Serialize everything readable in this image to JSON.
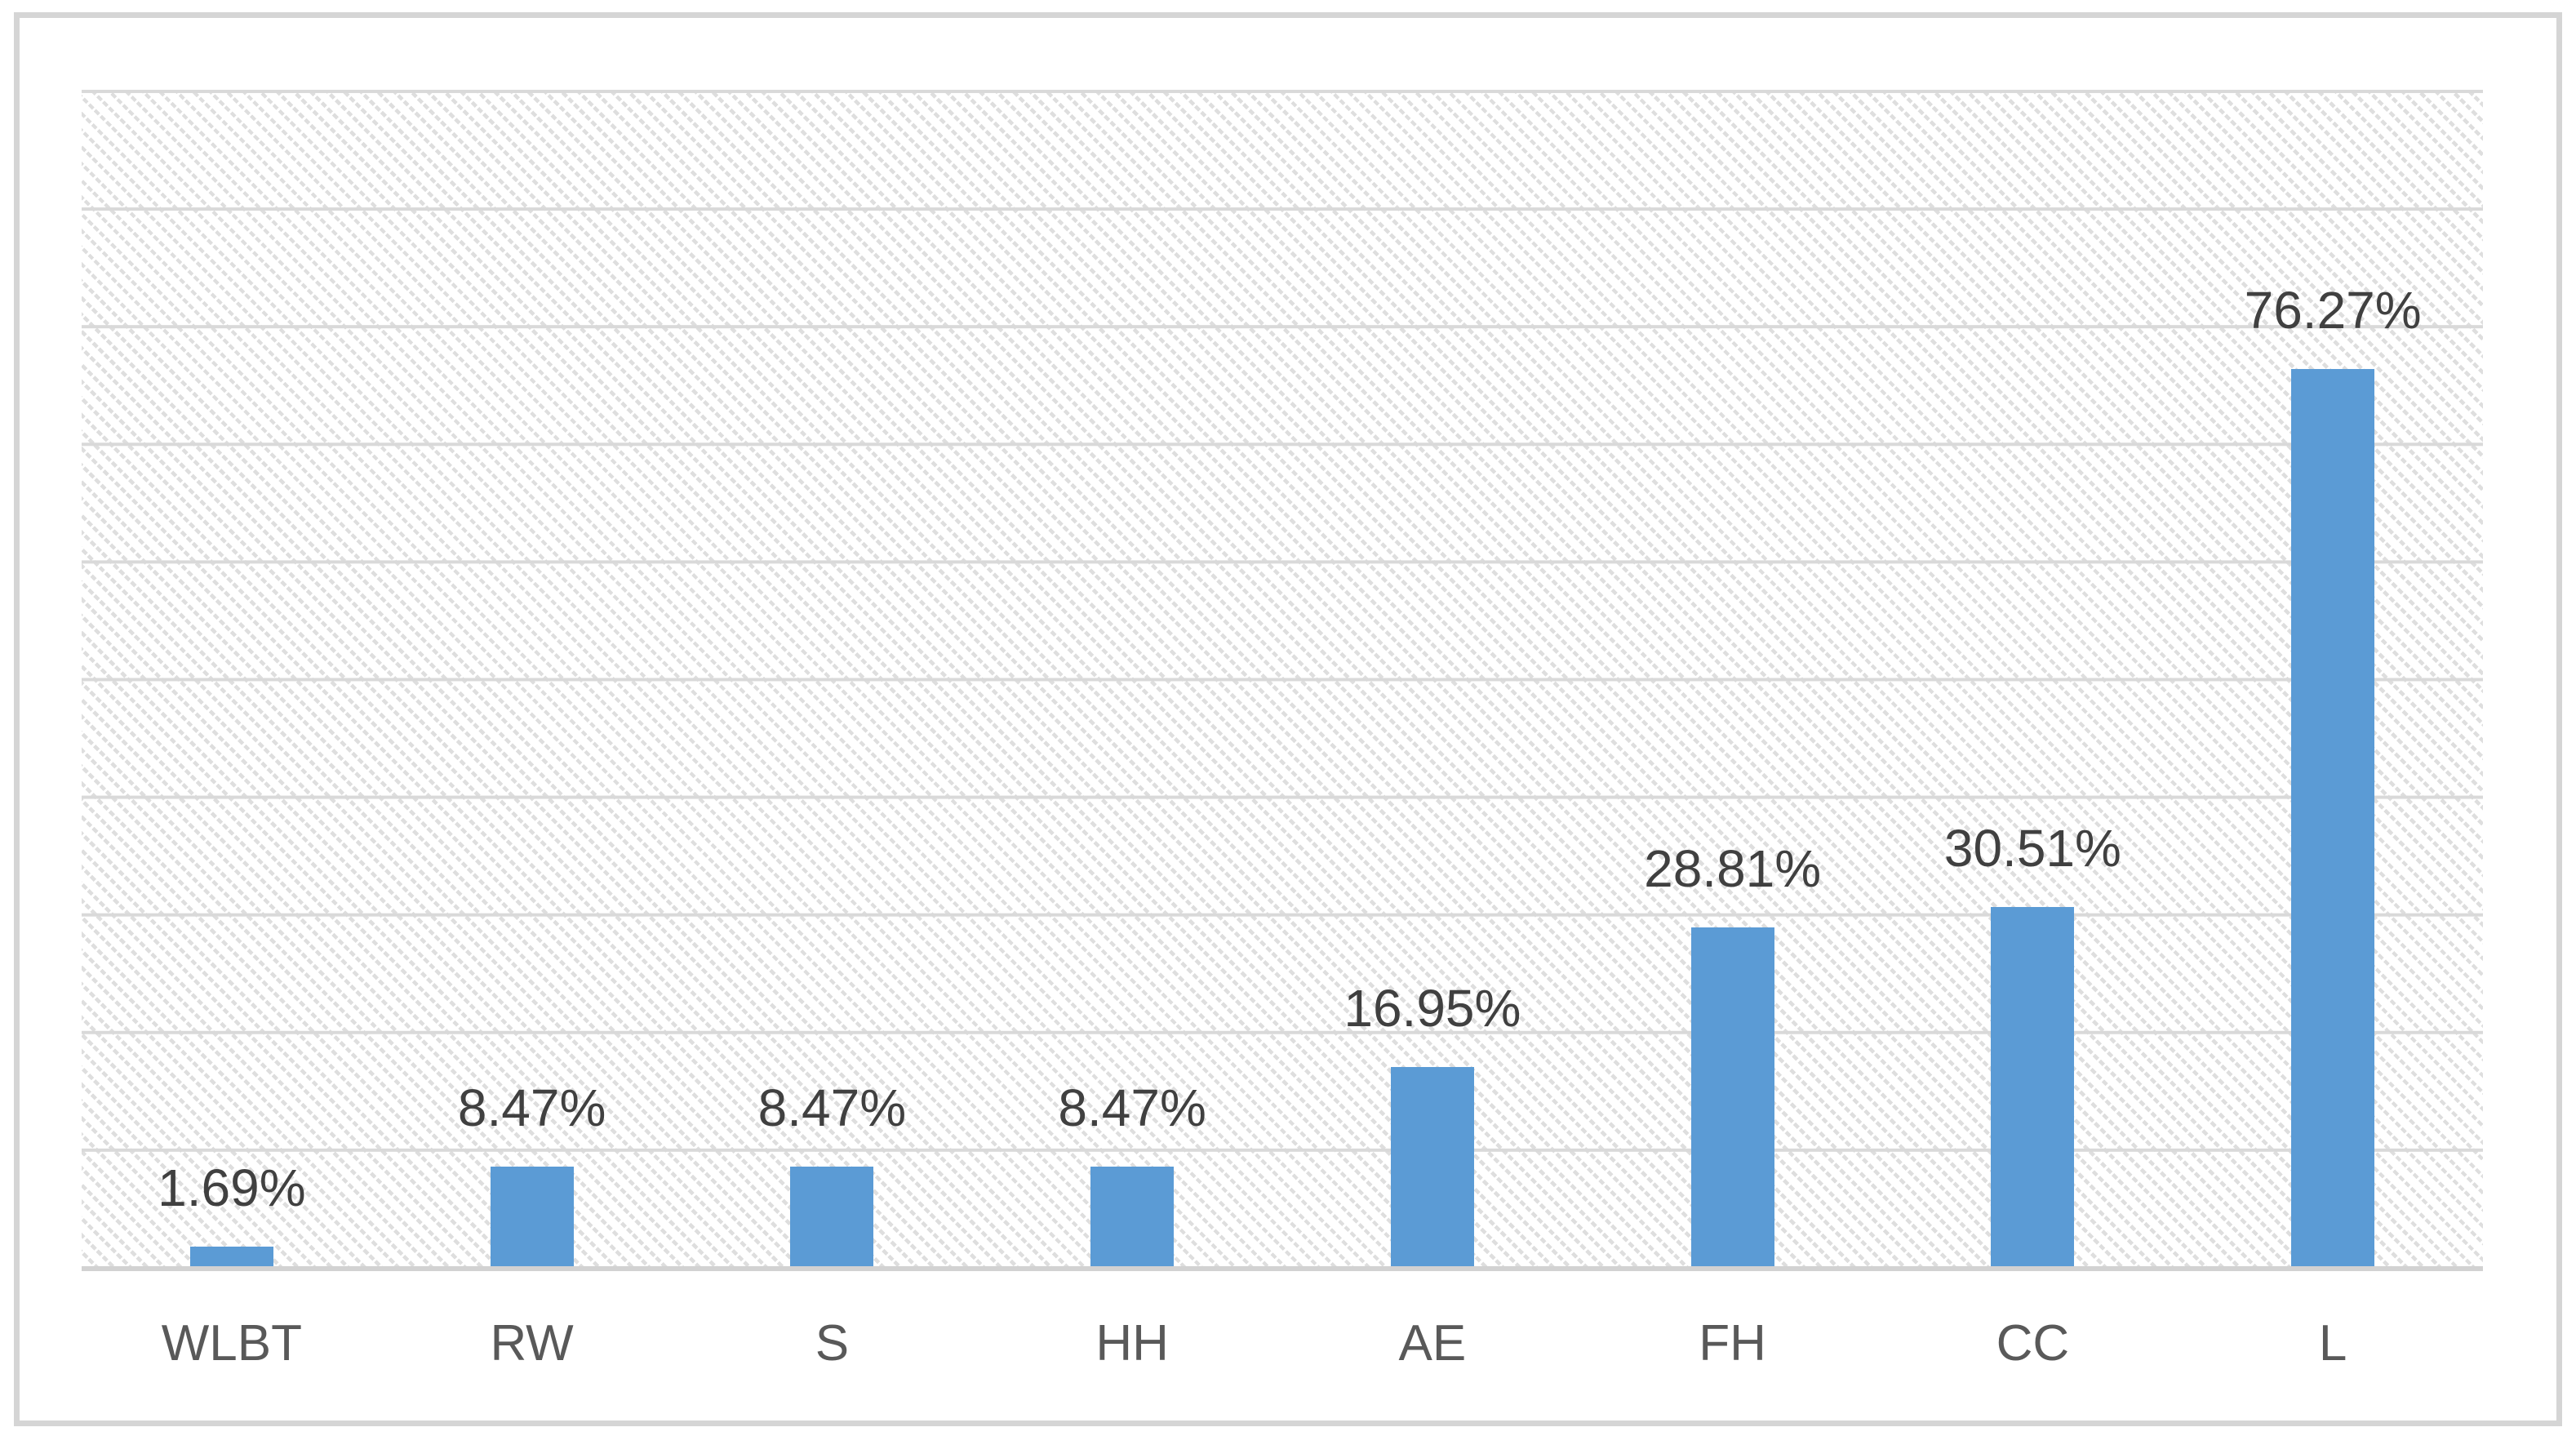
{
  "chart_data": {
    "type": "bar",
    "categories": [
      "WLBT",
      "RW",
      "S",
      "HH",
      "AE",
      "FH",
      "CC",
      "L"
    ],
    "values": [
      1.69,
      8.47,
      8.47,
      8.47,
      16.95,
      28.81,
      30.51,
      76.27
    ],
    "data_labels": [
      "1.69%",
      "8.47%",
      "8.47%",
      "8.47%",
      "16.95%",
      "28.81%",
      "30.51%",
      "76.27%"
    ],
    "title": "",
    "xlabel": "",
    "ylabel": "",
    "ylim": [
      0,
      100
    ],
    "gridline_step": 10,
    "grid": true,
    "y_tick_labels_visible": false,
    "legend": "none",
    "plot_area_fill": "diagonal-hatch",
    "colors": {
      "bar": "#5B9BD5",
      "gridline": "#D9D9D9",
      "hatch": "#DEDEDE",
      "axis_line": "#D2D2D2",
      "frame_border": "#D5D5D5",
      "data_label": "#404040",
      "category_label": "#595959",
      "background": "#FFFFFF"
    }
  }
}
